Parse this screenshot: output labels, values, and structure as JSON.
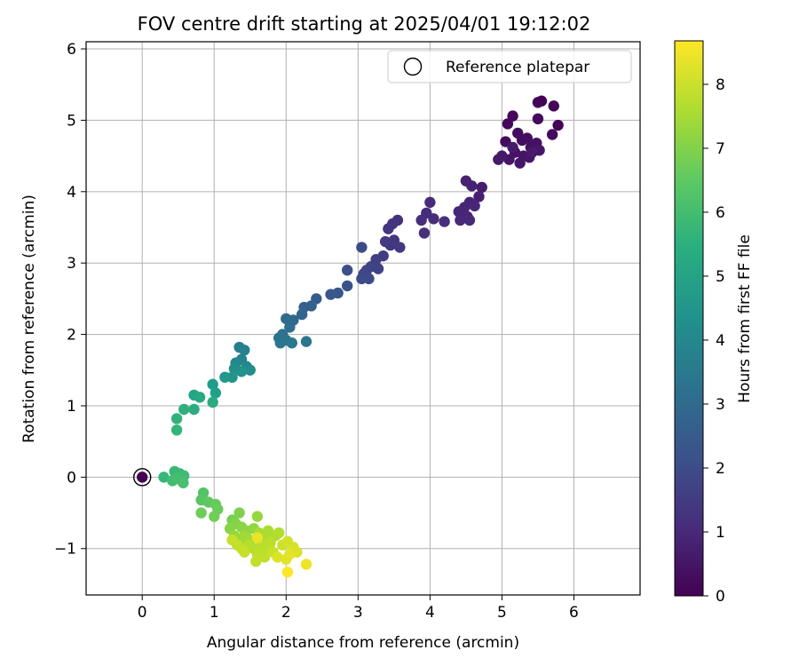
{
  "chart_data": {
    "type": "scatter",
    "title": "FOV centre drift starting at 2025/04/01 19:12:02",
    "xlabel": "Angular distance from reference (arcmin)",
    "ylabel": "Rotation from reference (arcmin)",
    "xlim": [
      -0.78,
      6.92
    ],
    "ylim": [
      -1.65,
      6.1
    ],
    "xticks": [
      0,
      1,
      2,
      3,
      4,
      5,
      6
    ],
    "yticks": [
      -1,
      0,
      1,
      2,
      3,
      4,
      5,
      6
    ],
    "grid": true,
    "legend": {
      "placement": "top-right",
      "entries": [
        "Reference platepar"
      ]
    },
    "reference_point": {
      "x": 0,
      "y": 0
    },
    "colorbar": {
      "label": "Hours from first FF file",
      "colormap": "viridis",
      "range": [
        0,
        8.68
      ],
      "ticks": [
        0,
        1,
        2,
        3,
        4,
        5,
        6,
        7,
        8
      ]
    },
    "points": [
      {
        "x": 5.55,
        "y": 5.27,
        "h": 0.05
      },
      {
        "x": 5.5,
        "y": 5.25,
        "h": 0.08
      },
      {
        "x": 5.72,
        "y": 5.2,
        "h": 0.1
      },
      {
        "x": 5.78,
        "y": 4.93,
        "h": 0.12
      },
      {
        "x": 5.15,
        "y": 5.06,
        "h": 0.15
      },
      {
        "x": 5.08,
        "y": 4.95,
        "h": 0.2
      },
      {
        "x": 5.5,
        "y": 5.02,
        "h": 0.22
      },
      {
        "x": 5.7,
        "y": 4.8,
        "h": 0.25
      },
      {
        "x": 5.05,
        "y": 4.7,
        "h": 0.28
      },
      {
        "x": 5.22,
        "y": 4.82,
        "h": 0.3
      },
      {
        "x": 5.28,
        "y": 4.72,
        "h": 0.33
      },
      {
        "x": 5.35,
        "y": 4.75,
        "h": 0.35
      },
      {
        "x": 5.4,
        "y": 4.62,
        "h": 0.38
      },
      {
        "x": 5.48,
        "y": 4.68,
        "h": 0.4
      },
      {
        "x": 5.18,
        "y": 4.55,
        "h": 0.42
      },
      {
        "x": 5.3,
        "y": 4.5,
        "h": 0.45
      },
      {
        "x": 5.1,
        "y": 4.45,
        "h": 0.48
      },
      {
        "x": 5.25,
        "y": 4.4,
        "h": 0.5
      },
      {
        "x": 5.38,
        "y": 4.48,
        "h": 0.52
      },
      {
        "x": 5.52,
        "y": 4.58,
        "h": 0.55
      },
      {
        "x": 5.0,
        "y": 4.5,
        "h": 0.58
      },
      {
        "x": 4.95,
        "y": 4.45,
        "h": 0.6
      },
      {
        "x": 5.42,
        "y": 4.55,
        "h": 0.62
      },
      {
        "x": 5.15,
        "y": 4.62,
        "h": 0.65
      },
      {
        "x": 4.72,
        "y": 4.06,
        "h": 0.7
      },
      {
        "x": 4.68,
        "y": 3.93,
        "h": 0.75
      },
      {
        "x": 4.5,
        "y": 4.15,
        "h": 0.8
      },
      {
        "x": 4.58,
        "y": 4.08,
        "h": 0.82
      },
      {
        "x": 4.55,
        "y": 3.85,
        "h": 0.85
      },
      {
        "x": 4.48,
        "y": 3.78,
        "h": 0.88
      },
      {
        "x": 4.4,
        "y": 3.72,
        "h": 0.9
      },
      {
        "x": 4.62,
        "y": 3.8,
        "h": 0.92
      },
      {
        "x": 4.52,
        "y": 3.65,
        "h": 0.95
      },
      {
        "x": 4.42,
        "y": 3.6,
        "h": 0.98
      },
      {
        "x": 4.55,
        "y": 3.6,
        "h": 1.0
      },
      {
        "x": 4.0,
        "y": 3.85,
        "h": 1.05
      },
      {
        "x": 4.05,
        "y": 3.62,
        "h": 1.1
      },
      {
        "x": 3.95,
        "y": 3.7,
        "h": 1.12
      },
      {
        "x": 3.88,
        "y": 3.6,
        "h": 1.15
      },
      {
        "x": 4.2,
        "y": 3.58,
        "h": 1.18
      },
      {
        "x": 3.92,
        "y": 3.42,
        "h": 1.2
      },
      {
        "x": 3.55,
        "y": 3.6,
        "h": 1.25
      },
      {
        "x": 3.48,
        "y": 3.55,
        "h": 1.3
      },
      {
        "x": 3.42,
        "y": 3.48,
        "h": 1.32
      },
      {
        "x": 3.5,
        "y": 3.32,
        "h": 1.35
      },
      {
        "x": 3.45,
        "y": 3.25,
        "h": 1.4
      },
      {
        "x": 3.58,
        "y": 3.22,
        "h": 1.45
      },
      {
        "x": 3.38,
        "y": 3.3,
        "h": 1.5
      },
      {
        "x": 3.35,
        "y": 3.1,
        "h": 1.55
      },
      {
        "x": 3.25,
        "y": 3.05,
        "h": 1.6
      },
      {
        "x": 3.28,
        "y": 2.92,
        "h": 1.7
      },
      {
        "x": 3.18,
        "y": 2.95,
        "h": 1.75
      },
      {
        "x": 3.12,
        "y": 2.9,
        "h": 1.8
      },
      {
        "x": 3.08,
        "y": 2.85,
        "h": 1.85
      },
      {
        "x": 3.15,
        "y": 2.78,
        "h": 1.9
      },
      {
        "x": 3.05,
        "y": 2.78,
        "h": 1.95
      },
      {
        "x": 3.05,
        "y": 3.22,
        "h": 2.0
      },
      {
        "x": 2.85,
        "y": 2.9,
        "h": 2.1
      },
      {
        "x": 2.85,
        "y": 2.68,
        "h": 2.2
      },
      {
        "x": 2.72,
        "y": 2.58,
        "h": 2.3
      },
      {
        "x": 2.62,
        "y": 2.56,
        "h": 2.4
      },
      {
        "x": 2.42,
        "y": 2.5,
        "h": 2.5
      },
      {
        "x": 2.35,
        "y": 2.4,
        "h": 2.6
      },
      {
        "x": 2.25,
        "y": 2.38,
        "h": 2.7
      },
      {
        "x": 2.22,
        "y": 2.28,
        "h": 2.8
      },
      {
        "x": 2.1,
        "y": 2.2,
        "h": 2.9
      },
      {
        "x": 2.0,
        "y": 2.22,
        "h": 3.0
      },
      {
        "x": 2.05,
        "y": 2.1,
        "h": 3.1
      },
      {
        "x": 1.95,
        "y": 2.0,
        "h": 3.2
      },
      {
        "x": 1.9,
        "y": 1.95,
        "h": 3.3
      },
      {
        "x": 2.0,
        "y": 1.92,
        "h": 3.35
      },
      {
        "x": 1.92,
        "y": 1.88,
        "h": 3.4
      },
      {
        "x": 2.28,
        "y": 1.9,
        "h": 3.45
      },
      {
        "x": 2.08,
        "y": 1.88,
        "h": 3.5
      },
      {
        "x": 1.35,
        "y": 1.82,
        "h": 3.7
      },
      {
        "x": 1.42,
        "y": 1.78,
        "h": 3.8
      },
      {
        "x": 1.38,
        "y": 1.65,
        "h": 3.9
      },
      {
        "x": 1.3,
        "y": 1.6,
        "h": 4.0
      },
      {
        "x": 1.45,
        "y": 1.55,
        "h": 4.1
      },
      {
        "x": 1.5,
        "y": 1.5,
        "h": 4.2
      },
      {
        "x": 1.28,
        "y": 1.52,
        "h": 4.3
      },
      {
        "x": 1.38,
        "y": 1.48,
        "h": 4.4
      },
      {
        "x": 1.25,
        "y": 1.4,
        "h": 4.5
      },
      {
        "x": 1.15,
        "y": 1.4,
        "h": 4.6
      },
      {
        "x": 0.98,
        "y": 1.3,
        "h": 4.8
      },
      {
        "x": 1.02,
        "y": 1.18,
        "h": 4.9
      },
      {
        "x": 0.72,
        "y": 1.15,
        "h": 5.1
      },
      {
        "x": 0.8,
        "y": 1.12,
        "h": 5.2
      },
      {
        "x": 0.98,
        "y": 1.05,
        "h": 5.3
      },
      {
        "x": 0.72,
        "y": 0.95,
        "h": 5.4
      },
      {
        "x": 0.58,
        "y": 0.95,
        "h": 5.5
      },
      {
        "x": 0.48,
        "y": 0.82,
        "h": 5.6
      },
      {
        "x": 0.48,
        "y": 0.66,
        "h": 5.7
      },
      {
        "x": 0.3,
        "y": 0.0,
        "h": 5.8
      },
      {
        "x": 0.45,
        "y": 0.08,
        "h": 5.85
      },
      {
        "x": 0.52,
        "y": 0.05,
        "h": 5.9
      },
      {
        "x": 0.58,
        "y": 0.02,
        "h": 5.95
      },
      {
        "x": 0.42,
        "y": -0.05,
        "h": 6.0
      },
      {
        "x": 0.55,
        "y": -0.05,
        "h": 6.05
      },
      {
        "x": 0.48,
        "y": -0.02,
        "h": 6.1
      },
      {
        "x": 0.57,
        "y": -0.08,
        "h": 6.15
      },
      {
        "x": 0.85,
        "y": -0.22,
        "h": 6.3
      },
      {
        "x": 0.82,
        "y": -0.32,
        "h": 6.4
      },
      {
        "x": 0.92,
        "y": -0.35,
        "h": 6.5
      },
      {
        "x": 1.02,
        "y": -0.38,
        "h": 6.6
      },
      {
        "x": 1.05,
        "y": -0.45,
        "h": 6.7
      },
      {
        "x": 0.82,
        "y": -0.5,
        "h": 6.75
      },
      {
        "x": 1.0,
        "y": -0.55,
        "h": 6.8
      },
      {
        "x": 1.25,
        "y": -0.6,
        "h": 6.9
      },
      {
        "x": 1.35,
        "y": -0.5,
        "h": 7.0
      },
      {
        "x": 1.3,
        "y": -0.65,
        "h": 7.05
      },
      {
        "x": 1.22,
        "y": -0.72,
        "h": 7.1
      },
      {
        "x": 1.38,
        "y": -0.7,
        "h": 7.15
      },
      {
        "x": 1.45,
        "y": -0.75,
        "h": 7.2
      },
      {
        "x": 1.55,
        "y": -0.72,
        "h": 7.25
      },
      {
        "x": 1.6,
        "y": -0.55,
        "h": 7.3
      },
      {
        "x": 1.28,
        "y": -0.82,
        "h": 7.35
      },
      {
        "x": 1.35,
        "y": -0.88,
        "h": 7.4
      },
      {
        "x": 1.42,
        "y": -0.82,
        "h": 7.45
      },
      {
        "x": 1.5,
        "y": -0.88,
        "h": 7.5
      },
      {
        "x": 1.62,
        "y": -0.78,
        "h": 7.55
      },
      {
        "x": 1.7,
        "y": -0.85,
        "h": 7.6
      },
      {
        "x": 1.75,
        "y": -0.75,
        "h": 7.62
      },
      {
        "x": 1.85,
        "y": -0.82,
        "h": 7.65
      },
      {
        "x": 1.9,
        "y": -0.78,
        "h": 7.68
      },
      {
        "x": 1.48,
        "y": -0.95,
        "h": 7.7
      },
      {
        "x": 1.55,
        "y": -1.0,
        "h": 7.72
      },
      {
        "x": 1.65,
        "y": -0.95,
        "h": 7.75
      },
      {
        "x": 1.72,
        "y": -1.0,
        "h": 7.78
      },
      {
        "x": 1.78,
        "y": -0.92,
        "h": 7.8
      },
      {
        "x": 1.6,
        "y": -1.08,
        "h": 7.82
      },
      {
        "x": 1.7,
        "y": -1.12,
        "h": 7.85
      },
      {
        "x": 1.58,
        "y": -1.18,
        "h": 7.88
      },
      {
        "x": 1.38,
        "y": -1.0,
        "h": 7.9
      },
      {
        "x": 1.32,
        "y": -0.95,
        "h": 7.92
      },
      {
        "x": 1.25,
        "y": -0.88,
        "h": 7.95
      },
      {
        "x": 1.42,
        "y": -1.05,
        "h": 7.98
      },
      {
        "x": 1.82,
        "y": -1.05,
        "h": 8.0
      },
      {
        "x": 1.95,
        "y": -0.95,
        "h": 8.05
      },
      {
        "x": 2.02,
        "y": -0.9,
        "h": 8.1
      },
      {
        "x": 2.1,
        "y": -0.98,
        "h": 8.15
      },
      {
        "x": 2.15,
        "y": -1.05,
        "h": 8.2
      },
      {
        "x": 1.88,
        "y": -1.12,
        "h": 8.25
      },
      {
        "x": 2.0,
        "y": -1.15,
        "h": 8.3
      },
      {
        "x": 2.05,
        "y": -1.08,
        "h": 8.35
      },
      {
        "x": 1.6,
        "y": -0.85,
        "h": 8.4
      },
      {
        "x": 2.28,
        "y": -1.22,
        "h": 8.5
      },
      {
        "x": 2.02,
        "y": -1.33,
        "h": 8.65
      }
    ]
  }
}
